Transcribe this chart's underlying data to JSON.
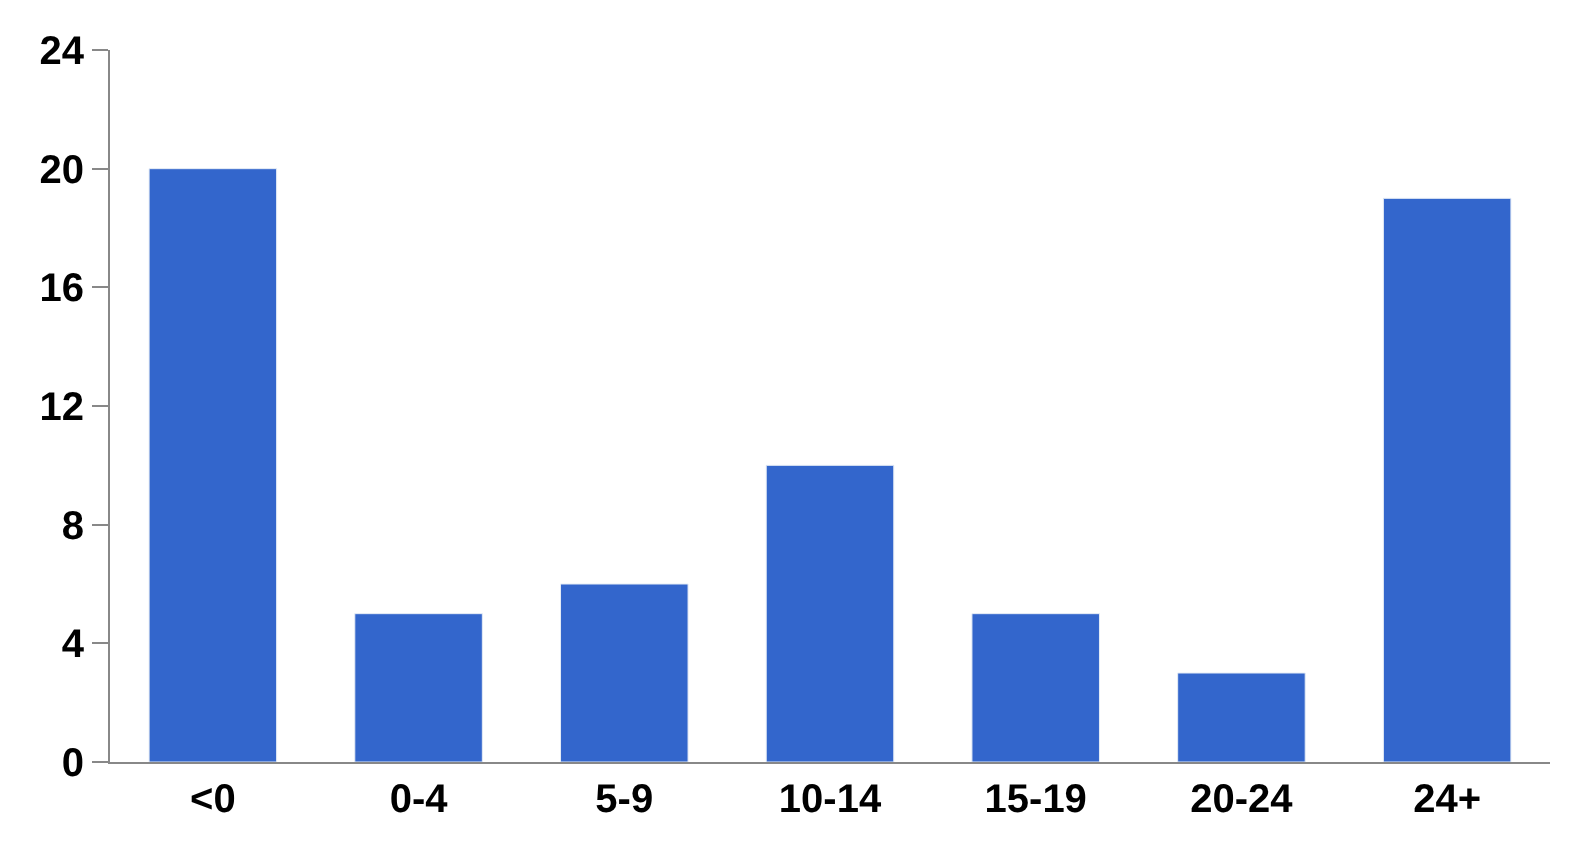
{
  "chart_data": {
    "type": "bar",
    "categories": [
      "<0",
      "0-4",
      "5-9",
      "10-14",
      "15-19",
      "20-24",
      "24+"
    ],
    "values": [
      20,
      5,
      6,
      10,
      5,
      3,
      19
    ],
    "color": "#3366cc",
    "ylim": [
      0,
      24
    ],
    "yticks": [
      0,
      4,
      8,
      12,
      16,
      20,
      24
    ]
  }
}
